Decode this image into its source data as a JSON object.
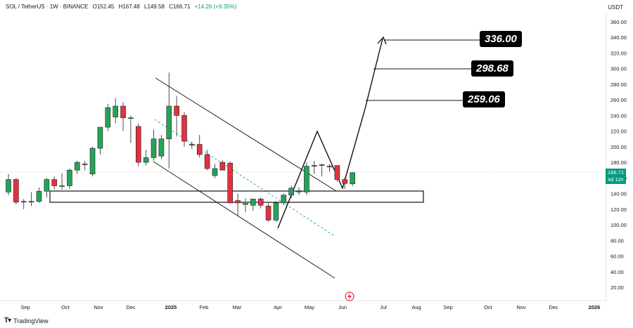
{
  "header": {
    "symbol": "SOL / TetherUS · 1W · BINANCE",
    "open": "O152.45",
    "high": "H167.48",
    "low": "L149.58",
    "close": "C166.71",
    "change": "+14.26 (+9.35%)"
  },
  "currency": "USDT",
  "brand": "TradingView",
  "current_price": {
    "value": "166.71",
    "countdown": "4d 11h"
  },
  "targets": [
    "336.00",
    "298.68",
    "259.06"
  ],
  "colors": {
    "up": "#26a35a",
    "down": "#e2313f",
    "trend": "#26a69a"
  },
  "chart_data": {
    "type": "candlestick",
    "y_ticks": [
      "360.00",
      "340.00",
      "320.00",
      "300.00",
      "280.00",
      "260.00",
      "240.00",
      "220.00",
      "200.00",
      "180.00",
      "160.00",
      "140.00",
      "120.00",
      "100.00",
      "80.00",
      "60.00",
      "40.00",
      "20.00"
    ],
    "x_ticks": [
      "Sep",
      "Oct",
      "Nov",
      "Dec",
      "2025",
      "Feb",
      "Mar",
      "Apr",
      "May",
      "Jun",
      "Jul",
      "Aug",
      "Sep",
      "Oct",
      "Nov",
      "Dec",
      "2026"
    ],
    "ylim": [
      5,
      372
    ],
    "candles": [
      {
        "o": 142,
        "h": 165,
        "l": 138,
        "c": 158
      },
      {
        "o": 158,
        "h": 160,
        "l": 126,
        "c": 129
      },
      {
        "o": 129,
        "h": 133,
        "l": 120,
        "c": 130
      },
      {
        "o": 130,
        "h": 142,
        "l": 124,
        "c": 130
      },
      {
        "o": 130,
        "h": 148,
        "l": 128,
        "c": 143
      },
      {
        "o": 143,
        "h": 160,
        "l": 135,
        "c": 158
      },
      {
        "o": 158,
        "h": 162,
        "l": 145,
        "c": 150
      },
      {
        "o": 150,
        "h": 166,
        "l": 145,
        "c": 150
      },
      {
        "o": 150,
        "h": 172,
        "l": 146,
        "c": 170
      },
      {
        "o": 170,
        "h": 182,
        "l": 165,
        "c": 180
      },
      {
        "o": 178,
        "h": 182,
        "l": 170,
        "c": 177
      },
      {
        "o": 165,
        "h": 200,
        "l": 162,
        "c": 198
      },
      {
        "o": 198,
        "h": 225,
        "l": 190,
        "c": 225
      },
      {
        "o": 225,
        "h": 255,
        "l": 220,
        "c": 250
      },
      {
        "o": 238,
        "h": 262,
        "l": 230,
        "c": 252
      },
      {
        "o": 252,
        "h": 257,
        "l": 220,
        "c": 237
      },
      {
        "o": 237,
        "h": 240,
        "l": 205,
        "c": 237
      },
      {
        "o": 226,
        "h": 230,
        "l": 175,
        "c": 180
      },
      {
        "o": 180,
        "h": 196,
        "l": 176,
        "c": 186
      },
      {
        "o": 186,
        "h": 222,
        "l": 182,
        "c": 210
      },
      {
        "o": 188,
        "h": 215,
        "l": 184,
        "c": 210
      },
      {
        "o": 210,
        "h": 295,
        "l": 172,
        "c": 252
      },
      {
        "o": 252,
        "h": 265,
        "l": 213,
        "c": 240
      },
      {
        "o": 240,
        "h": 244,
        "l": 200,
        "c": 207
      },
      {
        "o": 203,
        "h": 206,
        "l": 197,
        "c": 202
      },
      {
        "o": 203,
        "h": 215,
        "l": 186,
        "c": 190
      },
      {
        "o": 190,
        "h": 196,
        "l": 170,
        "c": 172
      },
      {
        "o": 163,
        "h": 178,
        "l": 160,
        "c": 172
      },
      {
        "o": 180,
        "h": 183,
        "l": 170,
        "c": 170
      },
      {
        "o": 179,
        "h": 181,
        "l": 128,
        "c": 128
      },
      {
        "o": 131,
        "h": 140,
        "l": 112,
        "c": 128
      },
      {
        "o": 126,
        "h": 134,
        "l": 116,
        "c": 129
      },
      {
        "o": 125,
        "h": 133,
        "l": 118,
        "c": 133
      },
      {
        "o": 133,
        "h": 135,
        "l": 121,
        "c": 125
      },
      {
        "o": 124,
        "h": 128,
        "l": 104,
        "c": 106
      },
      {
        "o": 106,
        "h": 130,
        "l": 104,
        "c": 128
      },
      {
        "o": 128,
        "h": 140,
        "l": 125,
        "c": 138
      },
      {
        "o": 138,
        "h": 150,
        "l": 134,
        "c": 147
      },
      {
        "o": 143,
        "h": 148,
        "l": 138,
        "c": 143
      },
      {
        "o": 142,
        "h": 180,
        "l": 138,
        "c": 175
      },
      {
        "o": 176,
        "h": 182,
        "l": 165,
        "c": 175
      },
      {
        "o": 176,
        "h": 178,
        "l": 162,
        "c": 177
      },
      {
        "o": 175,
        "h": 178,
        "l": 168,
        "c": 174
      },
      {
        "o": 176,
        "h": 176,
        "l": 155,
        "c": 158
      },
      {
        "o": 158,
        "h": 161,
        "l": 146,
        "c": 153
      },
      {
        "o": 152.45,
        "h": 167.48,
        "l": 149.58,
        "c": 166.71
      }
    ]
  }
}
